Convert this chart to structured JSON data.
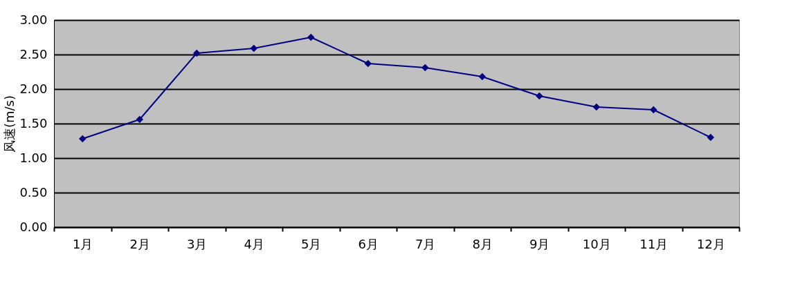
{
  "chart_data": {
    "type": "line",
    "ylabel": "风速(m/s)",
    "categories": [
      "1月",
      "2月",
      "3月",
      "4月",
      "5月",
      "6月",
      "7月",
      "8月",
      "9月",
      "10月",
      "11月",
      "12月"
    ],
    "series": [
      {
        "color": "#000080",
        "values": [
          1.28,
          1.56,
          2.52,
          2.59,
          2.75,
          2.37,
          2.31,
          2.18,
          1.9,
          1.74,
          1.7,
          1.3
        ]
      }
    ],
    "ylim": [
      0,
      3
    ],
    "yticks": [
      {
        "value": 0,
        "label": "0.00"
      },
      {
        "value": 0.5,
        "label": "0.50"
      },
      {
        "value": 1,
        "label": "1.00"
      },
      {
        "value": 1.5,
        "label": "1.50"
      },
      {
        "value": 2,
        "label": "2.00"
      },
      {
        "value": 2.5,
        "label": "2.50"
      },
      {
        "value": 3,
        "label": "3.00"
      }
    ],
    "grid": "y",
    "marker": "diamond",
    "line_style": "solid"
  }
}
